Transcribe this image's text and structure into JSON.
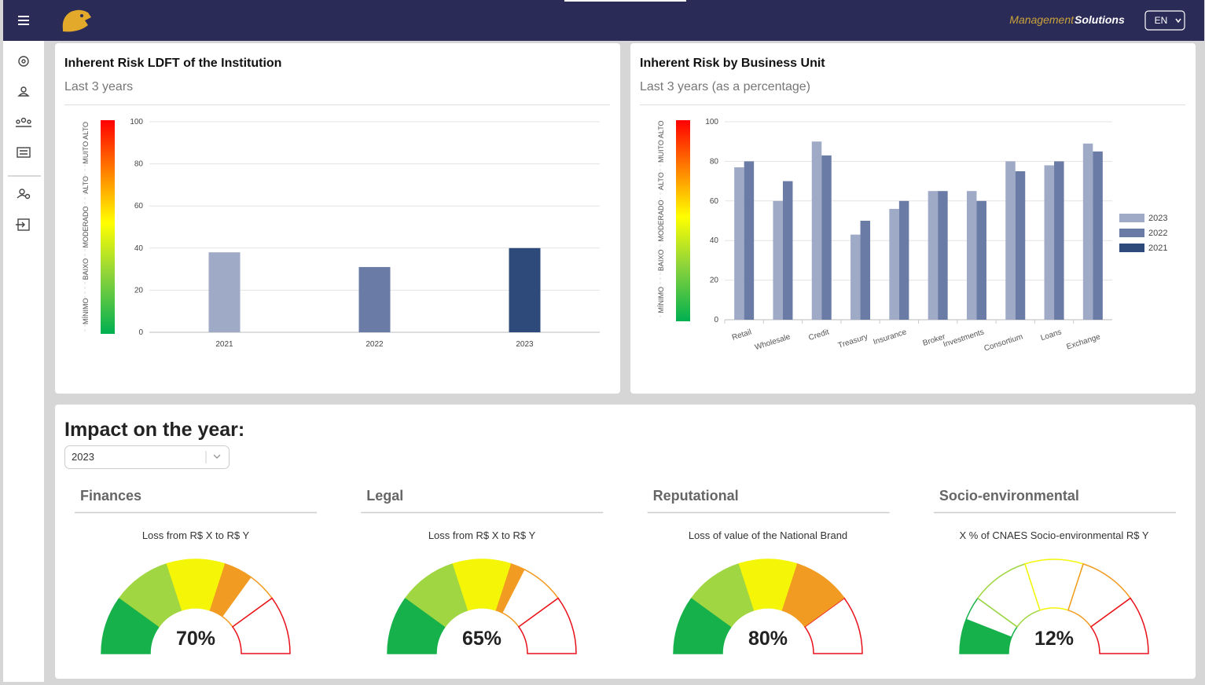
{
  "header": {
    "brand_1": "Management",
    "brand_2": "Solutions",
    "language": "EN"
  },
  "impact": {
    "title": "Impact on the year:",
    "year": "2023"
  },
  "chart_data": [
    {
      "type": "bar",
      "title": "Inherent Risk LDFT of the Institution",
      "subtitle": "Last 3 years",
      "categories": [
        "2021",
        "2022",
        "2023"
      ],
      "values": [
        38,
        31,
        40
      ],
      "colors": [
        "#9faac6",
        "#6a7ba6",
        "#2e4a7a"
      ],
      "ylim": [
        0,
        100
      ],
      "yticks": [
        0,
        20,
        40,
        60,
        80,
        100
      ],
      "grid": true,
      "risk_levels": [
        "MUITO ALTO",
        "ALTO",
        "MODERADO",
        "BAIXO",
        "MÍNIMO"
      ]
    },
    {
      "type": "grouped_bar",
      "title": "Inherent Risk by Business Unit",
      "subtitle": "Last 3 years (as a percentage)",
      "categories": [
        "Retail",
        "Wholesale",
        "Credit",
        "Treasury",
        "Insurance",
        "Broker",
        "Investments",
        "Consortium",
        "Loans",
        "Exchange"
      ],
      "series": [
        {
          "name": "2023",
          "color": "#9faac6",
          "values": [
            77,
            60,
            90,
            43,
            56,
            65,
            65,
            80,
            78,
            89
          ]
        },
        {
          "name": "2022",
          "color": "#6a7ba6",
          "values": [
            80,
            70,
            83,
            50,
            60,
            65,
            60,
            75,
            80,
            85
          ]
        },
        {
          "name": "2021",
          "color": "#2e4a7a",
          "values": [
            null,
            null,
            null,
            null,
            null,
            null,
            null,
            null,
            null,
            null
          ]
        }
      ],
      "ylim": [
        0,
        100
      ],
      "yticks": [
        0,
        20,
        40,
        60,
        80,
        100
      ],
      "grid": true,
      "legend": "right",
      "risk_levels": [
        "MUITO ALTO",
        "ALTO",
        "MODERADO",
        "BAIXO",
        "MÍNIMO"
      ]
    },
    {
      "type": "gauge",
      "title": "Finances",
      "subtitle": "Loss from R$ X to R$ Y",
      "value": 70,
      "value_label": "70%",
      "band_colors": [
        "#16b14b",
        "#9fd641",
        "#f5f507",
        "#f29b22",
        "#e8111b"
      ]
    },
    {
      "type": "gauge",
      "title": "Legal",
      "subtitle": "Loss from R$ X to R$ Y",
      "value": 65,
      "value_label": "65%",
      "band_colors": [
        "#16b14b",
        "#9fd641",
        "#f5f507",
        "#f29b22",
        "#e8111b"
      ]
    },
    {
      "type": "gauge",
      "title": "Reputational",
      "subtitle": "Loss of value of the National Brand",
      "value": 80,
      "value_label": "80%",
      "band_colors": [
        "#16b14b",
        "#9fd641",
        "#f5f507",
        "#f29b22",
        "#e8111b"
      ]
    },
    {
      "type": "gauge",
      "title": "Socio-environmental",
      "subtitle": "X % of CNAES Socio-environmental R$ Y",
      "value": 12,
      "value_label": "12%",
      "band_colors": [
        "#16b14b",
        "#9fd641",
        "#f5f507",
        "#f29b22",
        "#e8111b"
      ]
    }
  ]
}
